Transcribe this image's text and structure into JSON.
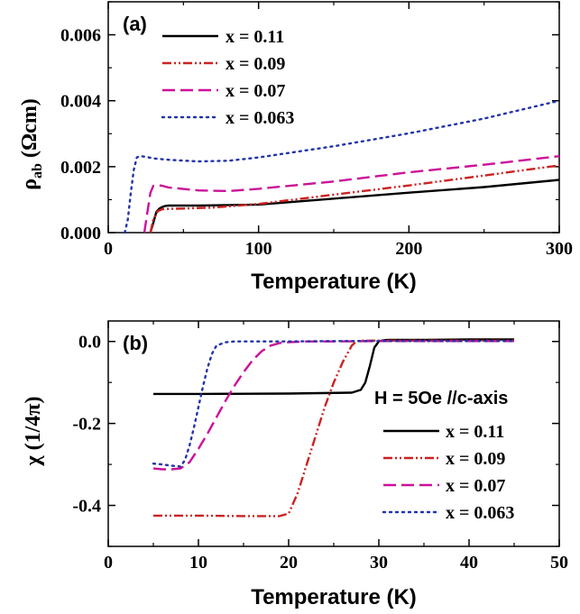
{
  "chart_data": [
    {
      "type": "line",
      "panel_label": "(a)",
      "xlabel": "Temperature (K)",
      "ylabel_main": "ρ",
      "ylabel_sub": "ab",
      "ylabel_unit": " (Ωcm)",
      "xlim": [
        0,
        300
      ],
      "ylim": [
        0,
        0.007
      ],
      "xticks": [
        0,
        100,
        200,
        300
      ],
      "xtick_labels": [
        "0",
        "100",
        "200",
        "300"
      ],
      "yticks": [
        0,
        0.002,
        0.004,
        0.006
      ],
      "ytick_labels": [
        "0.000",
        "0.002",
        "0.004",
        "0.006"
      ],
      "legend_position": "top-left",
      "series": [
        {
          "name": "x = 0.11",
          "color": "#000000",
          "dash": "solid",
          "x": [
            28,
            30,
            32,
            34,
            36,
            38,
            40,
            60,
            100,
            150,
            200,
            250,
            300
          ],
          "y": [
            0,
            0.0003,
            0.00062,
            0.00073,
            0.00078,
            0.00081,
            0.00082,
            0.00082,
            0.00085,
            0.00103,
            0.00121,
            0.00138,
            0.0016
          ]
        },
        {
          "name": "x = 0.09",
          "color": "#cc2222",
          "dash": "dashdotdot",
          "x": [
            28,
            30,
            33,
            36,
            40,
            50,
            70,
            100,
            150,
            200,
            250,
            300
          ],
          "y": [
            0,
            0.0004,
            0.00065,
            0.00071,
            0.00072,
            0.00073,
            0.00076,
            0.00087,
            0.00115,
            0.00143,
            0.00173,
            0.00204
          ]
        },
        {
          "name": "x = 0.07",
          "color": "#cc1199",
          "dash": "dash",
          "x": [
            24,
            26,
            28,
            30,
            35,
            40,
            60,
            80,
            100,
            150,
            200,
            250,
            300
          ],
          "y": [
            0,
            0.0006,
            0.0012,
            0.00142,
            0.00143,
            0.00137,
            0.00128,
            0.00126,
            0.00133,
            0.00155,
            0.00183,
            0.00206,
            0.00232
          ]
        },
        {
          "name": "x = 0.063",
          "color": "#2233aa",
          "dash": "dot",
          "x": [
            11,
            13,
            15,
            17,
            19,
            21,
            25,
            30,
            40,
            60,
            80,
            100,
            150,
            200,
            250,
            300
          ],
          "y": [
            0,
            0.0004,
            0.0012,
            0.0019,
            0.00228,
            0.00232,
            0.0023,
            0.00225,
            0.00221,
            0.00216,
            0.00218,
            0.00228,
            0.00262,
            0.00301,
            0.00346,
            0.004
          ]
        }
      ]
    },
    {
      "type": "line",
      "panel_label": "(b)",
      "xlabel": "Temperature (K)",
      "ylabel_main": "χ (1/4π)",
      "xlim": [
        0,
        50
      ],
      "ylim": [
        -0.5,
        0.05
      ],
      "xticks": [
        0,
        10,
        20,
        30,
        40,
        50
      ],
      "xtick_labels": [
        "0",
        "10",
        "20",
        "30",
        "40",
        "50"
      ],
      "yticks": [
        0,
        -0.2,
        -0.4
      ],
      "ytick_labels": [
        "0.0",
        "-0.2",
        "-0.4"
      ],
      "annotation": "H = 5Oe //c-axis",
      "legend_position": "right",
      "series": [
        {
          "name": "x = 0.11",
          "color": "#000000",
          "dash": "solid",
          "x": [
            5,
            10,
            20,
            27,
            28,
            28.5,
            29,
            29.5,
            30,
            30.5,
            31,
            35,
            40,
            45
          ],
          "y": [
            -0.128,
            -0.128,
            -0.127,
            -0.125,
            -0.118,
            -0.1,
            -0.06,
            -0.015,
            0.0,
            0.003,
            0.004,
            0.004,
            0.005,
            0.005
          ]
        },
        {
          "name": "x = 0.09",
          "color": "#cc2222",
          "dash": "dashdotdot",
          "x": [
            5,
            10,
            15,
            19,
            20,
            21,
            22,
            23,
            24,
            25,
            26,
            27,
            27.5,
            28,
            30,
            35,
            40,
            45
          ],
          "y": [
            -0.425,
            -0.425,
            -0.426,
            -0.426,
            -0.42,
            -0.37,
            -0.3,
            -0.23,
            -0.16,
            -0.1,
            -0.05,
            -0.01,
            0.0,
            0.002,
            0.002,
            0.002,
            0.002,
            0.002
          ]
        },
        {
          "name": "x = 0.07",
          "color": "#cc1199",
          "dash": "dash",
          "x": [
            5,
            6,
            7,
            8,
            9,
            10,
            11,
            12,
            13,
            14,
            15,
            16,
            17,
            18,
            19,
            20,
            22,
            25,
            30,
            35,
            40,
            45
          ],
          "y": [
            -0.31,
            -0.312,
            -0.312,
            -0.31,
            -0.295,
            -0.262,
            -0.225,
            -0.185,
            -0.145,
            -0.108,
            -0.075,
            -0.046,
            -0.024,
            -0.01,
            -0.004,
            -0.002,
            0.0,
            0.0,
            0.001,
            0.001,
            0.001,
            0.001
          ]
        },
        {
          "name": "x = 0.063",
          "color": "#2233aa",
          "dash": "dot",
          "x": [
            5,
            6,
            7,
            8,
            8.5,
            9,
            9.5,
            10,
            10.5,
            11,
            11.5,
            12,
            13,
            14,
            16,
            20,
            25,
            30,
            35,
            40,
            45
          ],
          "y": [
            -0.298,
            -0.3,
            -0.303,
            -0.305,
            -0.29,
            -0.255,
            -0.21,
            -0.16,
            -0.11,
            -0.065,
            -0.03,
            -0.01,
            -0.002,
            0.0,
            0.0,
            0.0,
            0.001,
            0.001,
            0.001,
            0.001,
            0.001
          ]
        }
      ]
    }
  ]
}
